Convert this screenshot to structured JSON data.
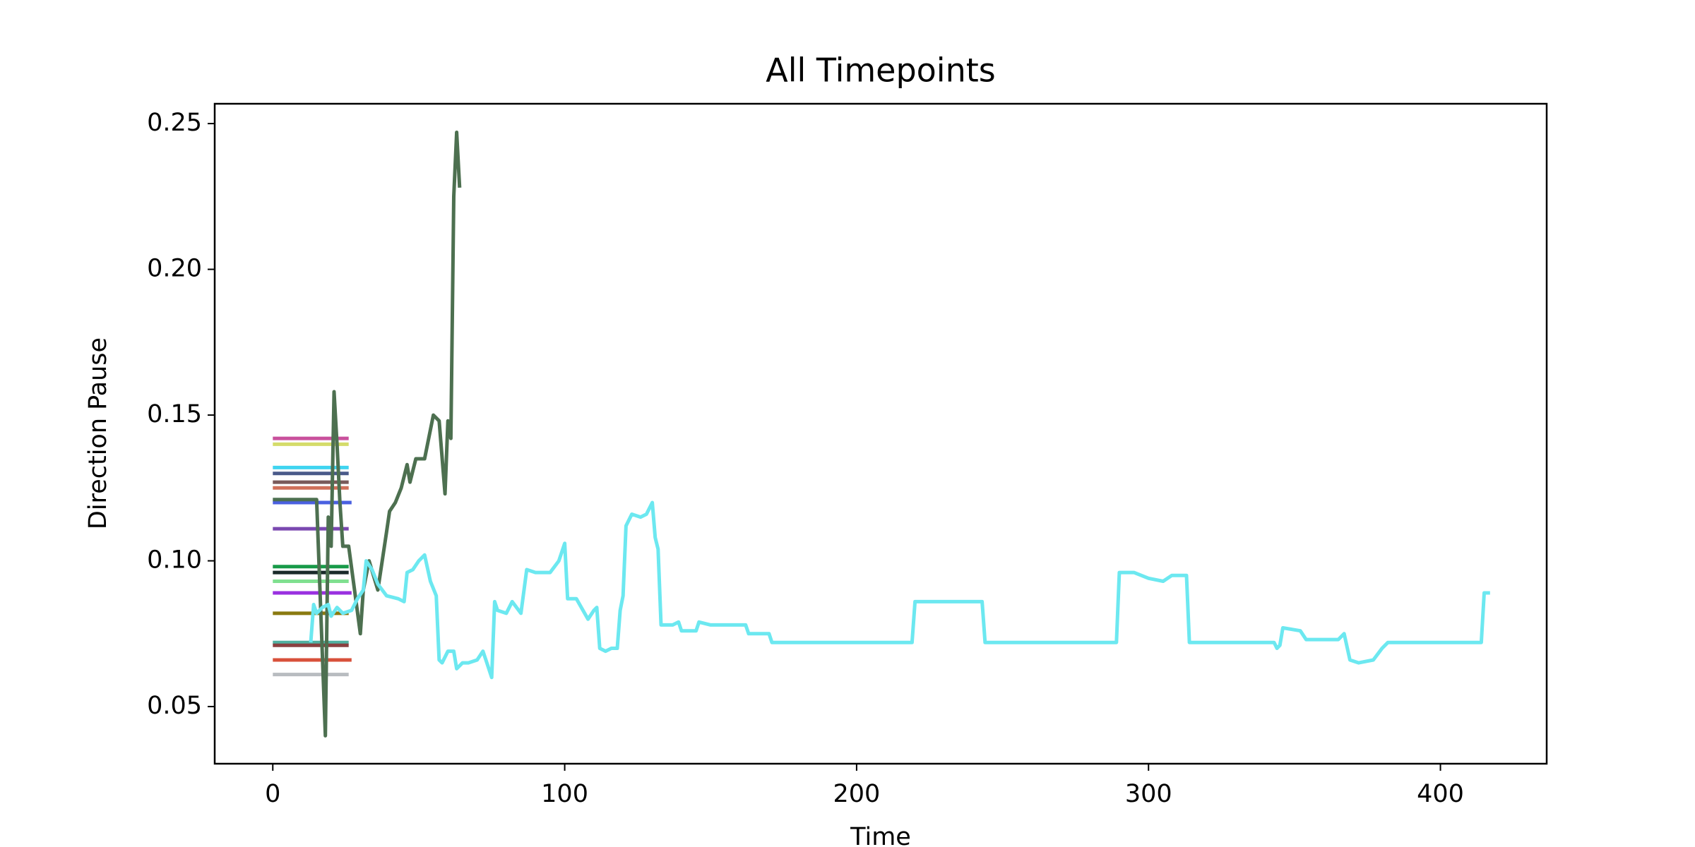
{
  "chart_data": {
    "type": "line",
    "title": "All Timepoints",
    "xlabel": "Time",
    "ylabel": "Direction Pause",
    "xlim": [
      -19.9,
      436.4
    ],
    "ylim": [
      0.0304,
      0.2568
    ],
    "xticks": [
      0,
      100,
      200,
      300,
      400
    ],
    "yticks": [
      0.05,
      {
        "value": 0.1,
        "label": "0.10"
      },
      0.15,
      {
        "value": 0.2,
        "label": "0.20"
      },
      0.25
    ],
    "grid": false,
    "series": [
      {
        "color": "#c9509c",
        "x": [
          0,
          26
        ],
        "values": [
          0.142,
          0.142
        ]
      },
      {
        "color": "#d4dc6a",
        "x": [
          0,
          26
        ],
        "values": [
          0.14,
          0.14
        ]
      },
      {
        "color": "#3fd4f0",
        "x": [
          0,
          26
        ],
        "values": [
          0.132,
          0.132
        ]
      },
      {
        "color": "#4a5a8a",
        "x": [
          0,
          26
        ],
        "values": [
          0.13,
          0.13
        ]
      },
      {
        "color": "#7a5a5a",
        "x": [
          0,
          26
        ],
        "values": [
          0.127,
          0.127
        ]
      },
      {
        "color": "#d0705a",
        "x": [
          0,
          26
        ],
        "values": [
          0.125,
          0.125
        ]
      },
      {
        "color": "#4a60e0",
        "x": [
          0,
          27
        ],
        "values": [
          0.12,
          0.12
        ]
      },
      {
        "color": "#7a48b0",
        "x": [
          0,
          26
        ],
        "values": [
          0.111,
          0.111
        ]
      },
      {
        "color": "#189a48",
        "x": [
          0,
          26
        ],
        "values": [
          0.098,
          0.098
        ]
      },
      {
        "color": "#1a2a2a",
        "x": [
          0,
          26
        ],
        "values": [
          0.096,
          0.096
        ]
      },
      {
        "color": "#80e090",
        "x": [
          0,
          26
        ],
        "values": [
          0.093,
          0.093
        ]
      },
      {
        "color": "#9a30e0",
        "x": [
          0,
          27
        ],
        "values": [
          0.089,
          0.089
        ]
      },
      {
        "color": "#8a7a10",
        "x": [
          0,
          26
        ],
        "values": [
          0.082,
          0.082
        ]
      },
      {
        "color": "#50b0a0",
        "x": [
          0,
          26
        ],
        "values": [
          0.072,
          0.072
        ]
      },
      {
        "color": "#8a4040",
        "x": [
          0,
          26
        ],
        "values": [
          0.071,
          0.071
        ]
      },
      {
        "color": "#d8503a",
        "x": [
          0,
          27
        ],
        "values": [
          0.066,
          0.066
        ]
      },
      {
        "color": "#b8bcc0",
        "x": [
          0,
          26
        ],
        "values": [
          0.061,
          0.061
        ]
      },
      {
        "color": "#4d7050",
        "x": [
          0,
          15,
          18,
          19,
          20,
          21,
          22,
          23,
          24,
          26,
          28,
          30,
          31,
          33,
          36,
          39,
          40,
          42,
          44,
          46,
          47,
          49,
          52,
          55,
          57,
          59,
          60,
          61,
          62,
          63,
          64
        ],
        "values": [
          0.121,
          0.121,
          0.04,
          0.115,
          0.105,
          0.158,
          0.14,
          0.12,
          0.105,
          0.105,
          0.09,
          0.075,
          0.09,
          0.1,
          0.09,
          0.11,
          0.117,
          0.12,
          0.125,
          0.133,
          0.127,
          0.135,
          0.135,
          0.15,
          0.148,
          0.123,
          0.148,
          0.142,
          0.225,
          0.247,
          0.228
        ]
      },
      {
        "color": "#6ce8f0",
        "x": [
          13,
          14,
          15,
          17,
          19,
          20,
          22,
          24,
          27,
          29,
          31,
          32,
          34,
          36,
          39,
          43,
          45,
          46,
          48,
          50,
          52,
          54,
          56,
          57,
          58,
          60,
          62,
          63,
          65,
          67,
          70,
          72,
          73,
          75,
          76,
          77,
          80,
          82,
          85,
          87,
          90,
          95,
          98,
          100,
          101,
          104,
          108,
          110,
          111,
          112,
          114,
          116,
          118,
          119,
          120,
          121,
          123,
          126,
          128,
          130,
          131,
          132,
          133,
          137,
          139,
          140,
          145,
          146,
          150,
          155,
          162,
          163,
          170,
          171,
          219,
          220,
          225,
          230,
          235,
          243,
          244,
          289,
          290,
          295,
          300,
          305,
          308,
          313,
          314,
          343,
          344,
          345,
          346,
          352,
          354,
          365,
          367,
          369,
          372,
          377,
          380,
          382,
          414,
          415,
          417
        ],
        "values": [
          0.072,
          0.085,
          0.082,
          0.084,
          0.085,
          0.081,
          0.084,
          0.082,
          0.083,
          0.087,
          0.09,
          0.1,
          0.097,
          0.092,
          0.088,
          0.087,
          0.086,
          0.096,
          0.097,
          0.1,
          0.102,
          0.093,
          0.088,
          0.066,
          0.065,
          0.069,
          0.069,
          0.063,
          0.065,
          0.065,
          0.066,
          0.069,
          0.066,
          0.06,
          0.086,
          0.083,
          0.082,
          0.086,
          0.082,
          0.097,
          0.096,
          0.096,
          0.1,
          0.106,
          0.087,
          0.087,
          0.08,
          0.083,
          0.084,
          0.07,
          0.069,
          0.07,
          0.07,
          0.083,
          0.088,
          0.112,
          0.116,
          0.115,
          0.116,
          0.12,
          0.108,
          0.104,
          0.078,
          0.078,
          0.079,
          0.076,
          0.076,
          0.079,
          0.078,
          0.078,
          0.078,
          0.075,
          0.075,
          0.072,
          0.072,
          0.086,
          0.086,
          0.086,
          0.086,
          0.086,
          0.072,
          0.072,
          0.096,
          0.096,
          0.094,
          0.093,
          0.095,
          0.095,
          0.072,
          0.072,
          0.07,
          0.071,
          0.077,
          0.076,
          0.073,
          0.073,
          0.075,
          0.066,
          0.065,
          0.066,
          0.07,
          0.072,
          0.072,
          0.089,
          0.089
        ]
      }
    ]
  }
}
